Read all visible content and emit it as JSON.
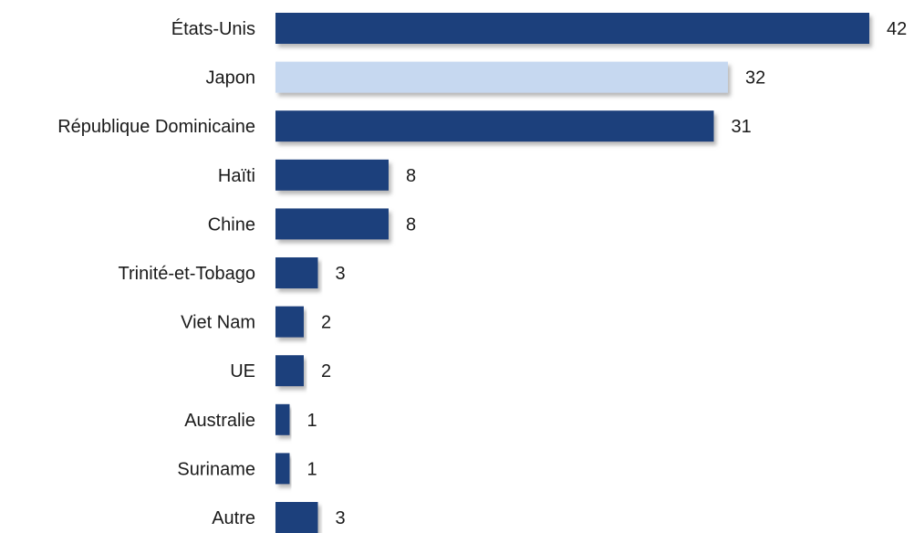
{
  "chart_data": {
    "type": "bar",
    "orientation": "horizontal",
    "title": "",
    "xlabel": "",
    "ylabel": "",
    "categories": [
      "États-Unis",
      "Japon",
      "République Dominicaine",
      "Haïti",
      "Chine",
      "Trinité-et-Tobago",
      "Viet Nam",
      "UE",
      "Australie",
      "Suriname",
      "Autre"
    ],
    "values": [
      42,
      32,
      31,
      8,
      8,
      3,
      2,
      2,
      1,
      1,
      3
    ],
    "value_labels": [
      "42",
      "32",
      "31",
      "8",
      "8",
      "3",
      "2",
      "2",
      "1",
      "1",
      "3"
    ],
    "xlim": [
      0,
      42
    ],
    "grid": false,
    "legend": "none",
    "colors": {
      "bar": "#1f3f7c",
      "highlight_bar": "#c6d8f0",
      "shadow": "#9a9a9a",
      "text": "#1a1a1a"
    },
    "highlight_index": 1
  }
}
